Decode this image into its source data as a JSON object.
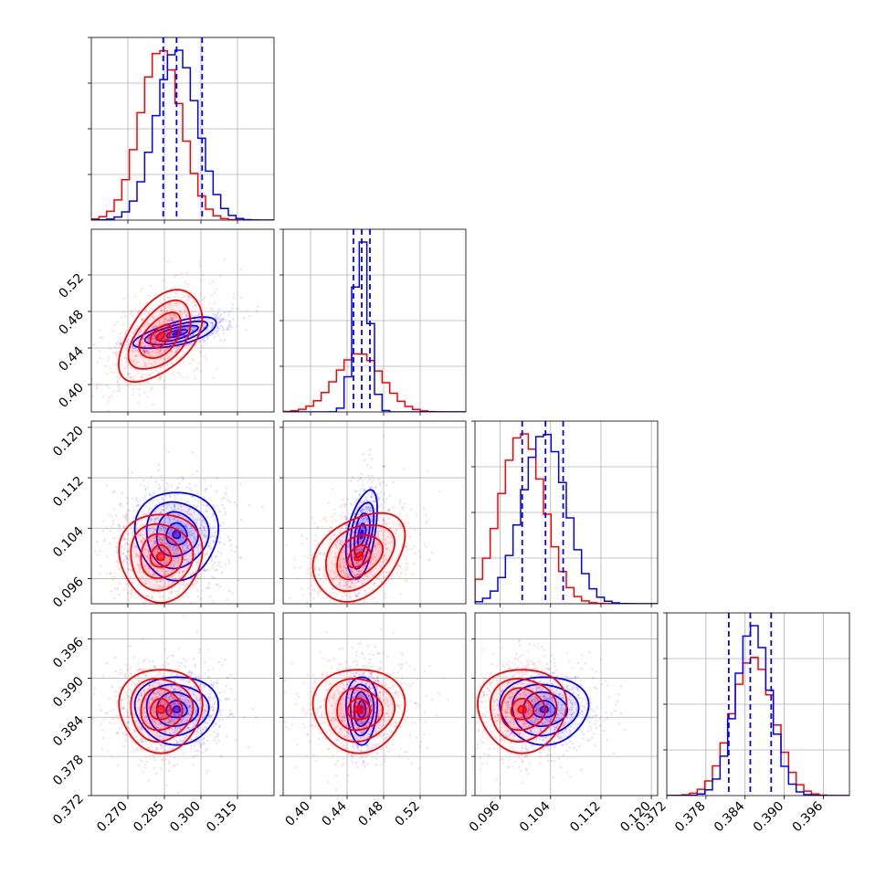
{
  "colors": {
    "series_a": "#ff0000",
    "series_b": "#0000ff",
    "grid": "#b0b0b0",
    "frame": "#000000"
  },
  "chart_data": {
    "type": "corner",
    "grid": true,
    "parameters": [
      {
        "index": 0,
        "range": [
          0.255,
          0.33
        ],
        "ticks": [
          0.27,
          0.285,
          0.3,
          0.315
        ],
        "tick_labels": [
          "0.270",
          "0.285",
          "0.300",
          "0.315"
        ]
      },
      {
        "index": 1,
        "range": [
          0.37,
          0.57
        ],
        "ticks": [
          0.4,
          0.44,
          0.48,
          0.52
        ],
        "tick_labels": [
          "0.40",
          "0.44",
          "0.48",
          "0.52"
        ]
      },
      {
        "index": 2,
        "range": [
          0.092,
          0.121
        ],
        "ticks": [
          0.096,
          0.104,
          0.112,
          0.12
        ],
        "tick_labels": [
          "0.096",
          "0.104",
          "0.112",
          "0.120"
        ]
      },
      {
        "index": 3,
        "range": [
          0.372,
          0.4
        ],
        "ticks": [
          0.372,
          0.378,
          0.384,
          0.39,
          0.396
        ],
        "tick_labels": [
          "0.372",
          "0.378",
          "0.384",
          "0.390",
          "0.396"
        ]
      }
    ],
    "series": [
      {
        "color": "red",
        "mean": [
          0.2835,
          0.453,
          0.0995,
          0.3852
        ],
        "std": [
          0.0085,
          0.025,
          0.0035,
          0.0032
        ],
        "correlations": {
          "0-1": 0.5,
          "0-2": 0.0,
          "1-2": 0.35,
          "0-3": 0.0,
          "1-3": 0.0,
          "2-3": 0.0
        },
        "quantiles": null
      },
      {
        "color": "blue",
        "mean": [
          0.29,
          0.456,
          0.103,
          0.3852
        ],
        "std": [
          0.0085,
          0.0085,
          0.0035,
          0.0026
        ],
        "correlations": {
          "0-1": 0.65,
          "0-2": 0.0,
          "1-2": 0.45,
          "0-3": 0.0,
          "1-3": 0.0,
          "2-3": 0.0
        },
        "quantiles": [
          [
            0.2845,
            0.29,
            0.3005
          ],
          [
            0.447,
            0.456,
            0.465
          ],
          [
            0.0995,
            0.1032,
            0.106
          ],
          [
            0.3815,
            0.3848,
            0.388
          ]
        ]
      }
    ]
  }
}
